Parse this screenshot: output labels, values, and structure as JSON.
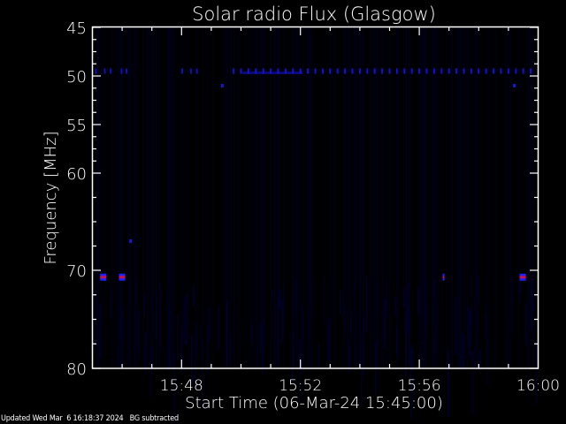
{
  "chart_data": {
    "type": "heatmap",
    "title": "Solar radio Flux (Glasgow)",
    "xlabel": "Start Time (06-Mar-24 15:45:00)",
    "ylabel": "Frequency [MHz]",
    "xlim": [
      "15:45",
      "16:00"
    ],
    "x_tick_labels": [
      "15:48",
      "15:52",
      "15:56",
      "16:00"
    ],
    "y_tick_labels": [
      "45",
      "50",
      "55",
      "60",
      "70",
      "80"
    ],
    "y_axis_direction": "inverted (45 top, 80 bottom)",
    "grid": false,
    "colormap": [
      "#000000",
      "#0000ff",
      "#ff0000"
    ],
    "pulse_band": {
      "freq_mhz": 49.5,
      "start": "15:49:45",
      "end": "16:00:00",
      "interval_s": 15,
      "color": "#1010e0"
    },
    "early_pulses": [
      {
        "time": "15:45:07",
        "freq_mhz": 49.5
      },
      {
        "time": "15:45:25",
        "freq_mhz": 49.5
      },
      {
        "time": "15:45:37",
        "freq_mhz": 49.5
      },
      {
        "time": "15:45:59",
        "freq_mhz": 49.5
      },
      {
        "time": "15:46:09",
        "freq_mhz": 49.5
      },
      {
        "time": "15:48:01",
        "freq_mhz": 49.5
      },
      {
        "time": "15:48:19",
        "freq_mhz": 49.5
      },
      {
        "time": "15:48:31",
        "freq_mhz": 49.5
      }
    ],
    "hot_spots": [
      {
        "time": "15:45:21",
        "freq_mhz": 70.7,
        "level": "high"
      },
      {
        "time": "15:45:59",
        "freq_mhz": 70.7,
        "level": "high"
      },
      {
        "time": "15:56:49",
        "freq_mhz": 70.7,
        "level": "medium"
      },
      {
        "time": "15:59:28",
        "freq_mhz": 70.7,
        "level": "high"
      },
      {
        "time": "15:46:17",
        "freq_mhz": 67.0,
        "level": "low"
      },
      {
        "time": "15:49:22",
        "freq_mhz": 51.0,
        "level": "low"
      },
      {
        "time": "15:59:12",
        "freq_mhz": 51.0,
        "level": "low"
      }
    ]
  },
  "footer": {
    "updated": "Updated Wed Mar  6 16:18:37 2024",
    "note": "BG subtracted"
  }
}
